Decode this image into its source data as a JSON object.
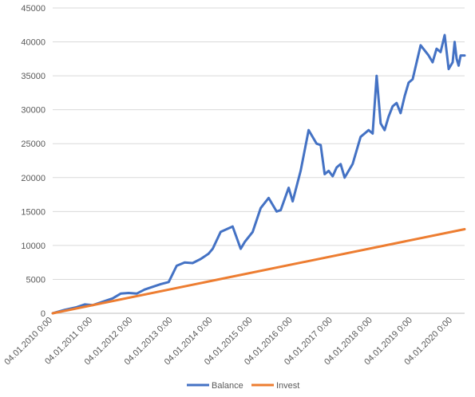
{
  "chart_data": {
    "type": "line",
    "x_tick_labels": [
      "04.01.2010 0:00",
      "04.01.2011 0:00",
      "04.01.2012 0:00",
      "04.01.2013 0:00",
      "04.01.2014 0:00",
      "04.01.2015 0:00",
      "04.01.2016 0:00",
      "04.01.2017 0:00",
      "04.01.2018 0:00",
      "04.01.2019 0:00",
      "04.01.2020 0:00"
    ],
    "y_ticks": [
      0,
      5000,
      10000,
      15000,
      20000,
      25000,
      30000,
      35000,
      40000,
      45000
    ],
    "y_tick_labels": [
      "0",
      "5000",
      "10000",
      "15000",
      "20000",
      "25000",
      "30000",
      "35000",
      "40000",
      "45000"
    ],
    "ylim": [
      0,
      45000
    ],
    "xlim": [
      2010.0,
      2020.3
    ],
    "grid": true,
    "legend_position": "bottom",
    "series": [
      {
        "name": "Balance",
        "color": "#4472c4",
        "x": [
          2010.0,
          2010.3,
          2010.6,
          2010.8,
          2011.0,
          2011.2,
          2011.5,
          2011.7,
          2011.9,
          2012.1,
          2012.3,
          2012.5,
          2012.7,
          2012.9,
          2013.1,
          2013.3,
          2013.5,
          2013.7,
          2013.9,
          2014.0,
          2014.2,
          2014.5,
          2014.7,
          2014.8,
          2015.0,
          2015.2,
          2015.4,
          2015.6,
          2015.7,
          2015.9,
          2016.0,
          2016.2,
          2016.4,
          2016.6,
          2016.7,
          2016.8,
          2016.9,
          2017.0,
          2017.1,
          2017.2,
          2017.3,
          2017.5,
          2017.7,
          2017.9,
          2018.0,
          2018.1,
          2018.2,
          2018.3,
          2018.4,
          2018.5,
          2018.6,
          2018.7,
          2018.8,
          2018.9,
          2019.0,
          2019.2,
          2019.4,
          2019.5,
          2019.6,
          2019.7,
          2019.8,
          2019.9,
          2020.0,
          2020.05,
          2020.1,
          2020.15,
          2020.2,
          2020.3
        ],
        "values": [
          0,
          500,
          900,
          1300,
          1200,
          1600,
          2200,
          2900,
          3000,
          2900,
          3500,
          3900,
          4300,
          4600,
          7000,
          7500,
          7400,
          8000,
          8800,
          9500,
          12000,
          12800,
          9500,
          10500,
          12000,
          15500,
          17000,
          15000,
          15200,
          18500,
          16500,
          21000,
          27000,
          25000,
          24800,
          20500,
          21000,
          20200,
          21500,
          22000,
          20000,
          22000,
          26000,
          27000,
          26500,
          35000,
          28000,
          27000,
          29000,
          30500,
          31000,
          29500,
          32000,
          34000,
          34500,
          39500,
          38000,
          37000,
          39000,
          38500,
          41000,
          36000,
          37000,
          40000,
          37500,
          36500,
          38000,
          38000
        ]
      },
      {
        "name": "Invest",
        "color": "#ed7d31",
        "x": [
          2010.0,
          2020.3
        ],
        "values": [
          0,
          12400
        ]
      }
    ]
  }
}
